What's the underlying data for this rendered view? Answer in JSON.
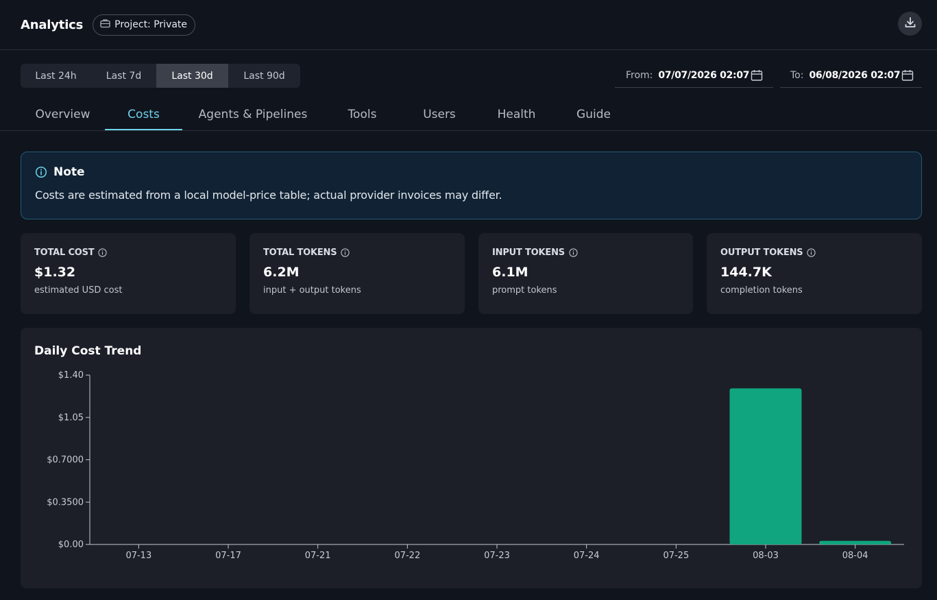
{
  "header": {
    "title": "Analytics",
    "project_label": "Project: Private"
  },
  "range_buttons": [
    {
      "label": "Last 24h",
      "active": false
    },
    {
      "label": "Last 7d",
      "active": false
    },
    {
      "label": "Last 30d",
      "active": true
    },
    {
      "label": "Last 90d",
      "active": false
    }
  ],
  "date_range": {
    "from_label": "From:",
    "from_value": "07/07/2026 02:07",
    "to_label": "To:",
    "to_value": "06/08/2026 02:07"
  },
  "tabs": [
    {
      "label": "Overview",
      "active": false
    },
    {
      "label": "Costs",
      "active": true
    },
    {
      "label": "Agents & Pipelines",
      "active": false
    },
    {
      "label": "Tools",
      "active": false
    },
    {
      "label": "Users",
      "active": false
    },
    {
      "label": "Health",
      "active": false
    },
    {
      "label": "Guide",
      "active": false
    }
  ],
  "note": {
    "title": "Note",
    "body": "Costs are estimated from a local model-price table; actual provider invoices may differ."
  },
  "cards": [
    {
      "label": "TOTAL COST",
      "value": "$1.32",
      "sub": "estimated USD cost"
    },
    {
      "label": "TOTAL TOKENS",
      "value": "6.2M",
      "sub": "input + output tokens"
    },
    {
      "label": "INPUT TOKENS",
      "value": "6.1M",
      "sub": "prompt tokens"
    },
    {
      "label": "OUTPUT TOKENS",
      "value": "144.7K",
      "sub": "completion tokens"
    }
  ],
  "colors": {
    "accent": "#6fd3ea",
    "bar": "#10a57f",
    "background": "#10141d",
    "panel": "#1c1f28"
  },
  "chart_data": {
    "type": "bar",
    "title": "Daily Cost Trend",
    "categories": [
      "07-13",
      "07-17",
      "07-21",
      "07-22",
      "07-23",
      "07-24",
      "07-25",
      "08-03",
      "08-04"
    ],
    "values": [
      0,
      0,
      0,
      0,
      0,
      0,
      0,
      1.29,
      0.03
    ],
    "ylim": [
      0,
      1.4
    ],
    "yticks": [
      {
        "value": 0,
        "label": "$0.00"
      },
      {
        "value": 0.35,
        "label": "$0.3500"
      },
      {
        "value": 0.7,
        "label": "$0.7000"
      },
      {
        "value": 1.05,
        "label": "$1.05"
      },
      {
        "value": 1.4,
        "label": "$1.40"
      }
    ],
    "xlabel": "",
    "ylabel": "",
    "grid": false,
    "legend": "none"
  }
}
